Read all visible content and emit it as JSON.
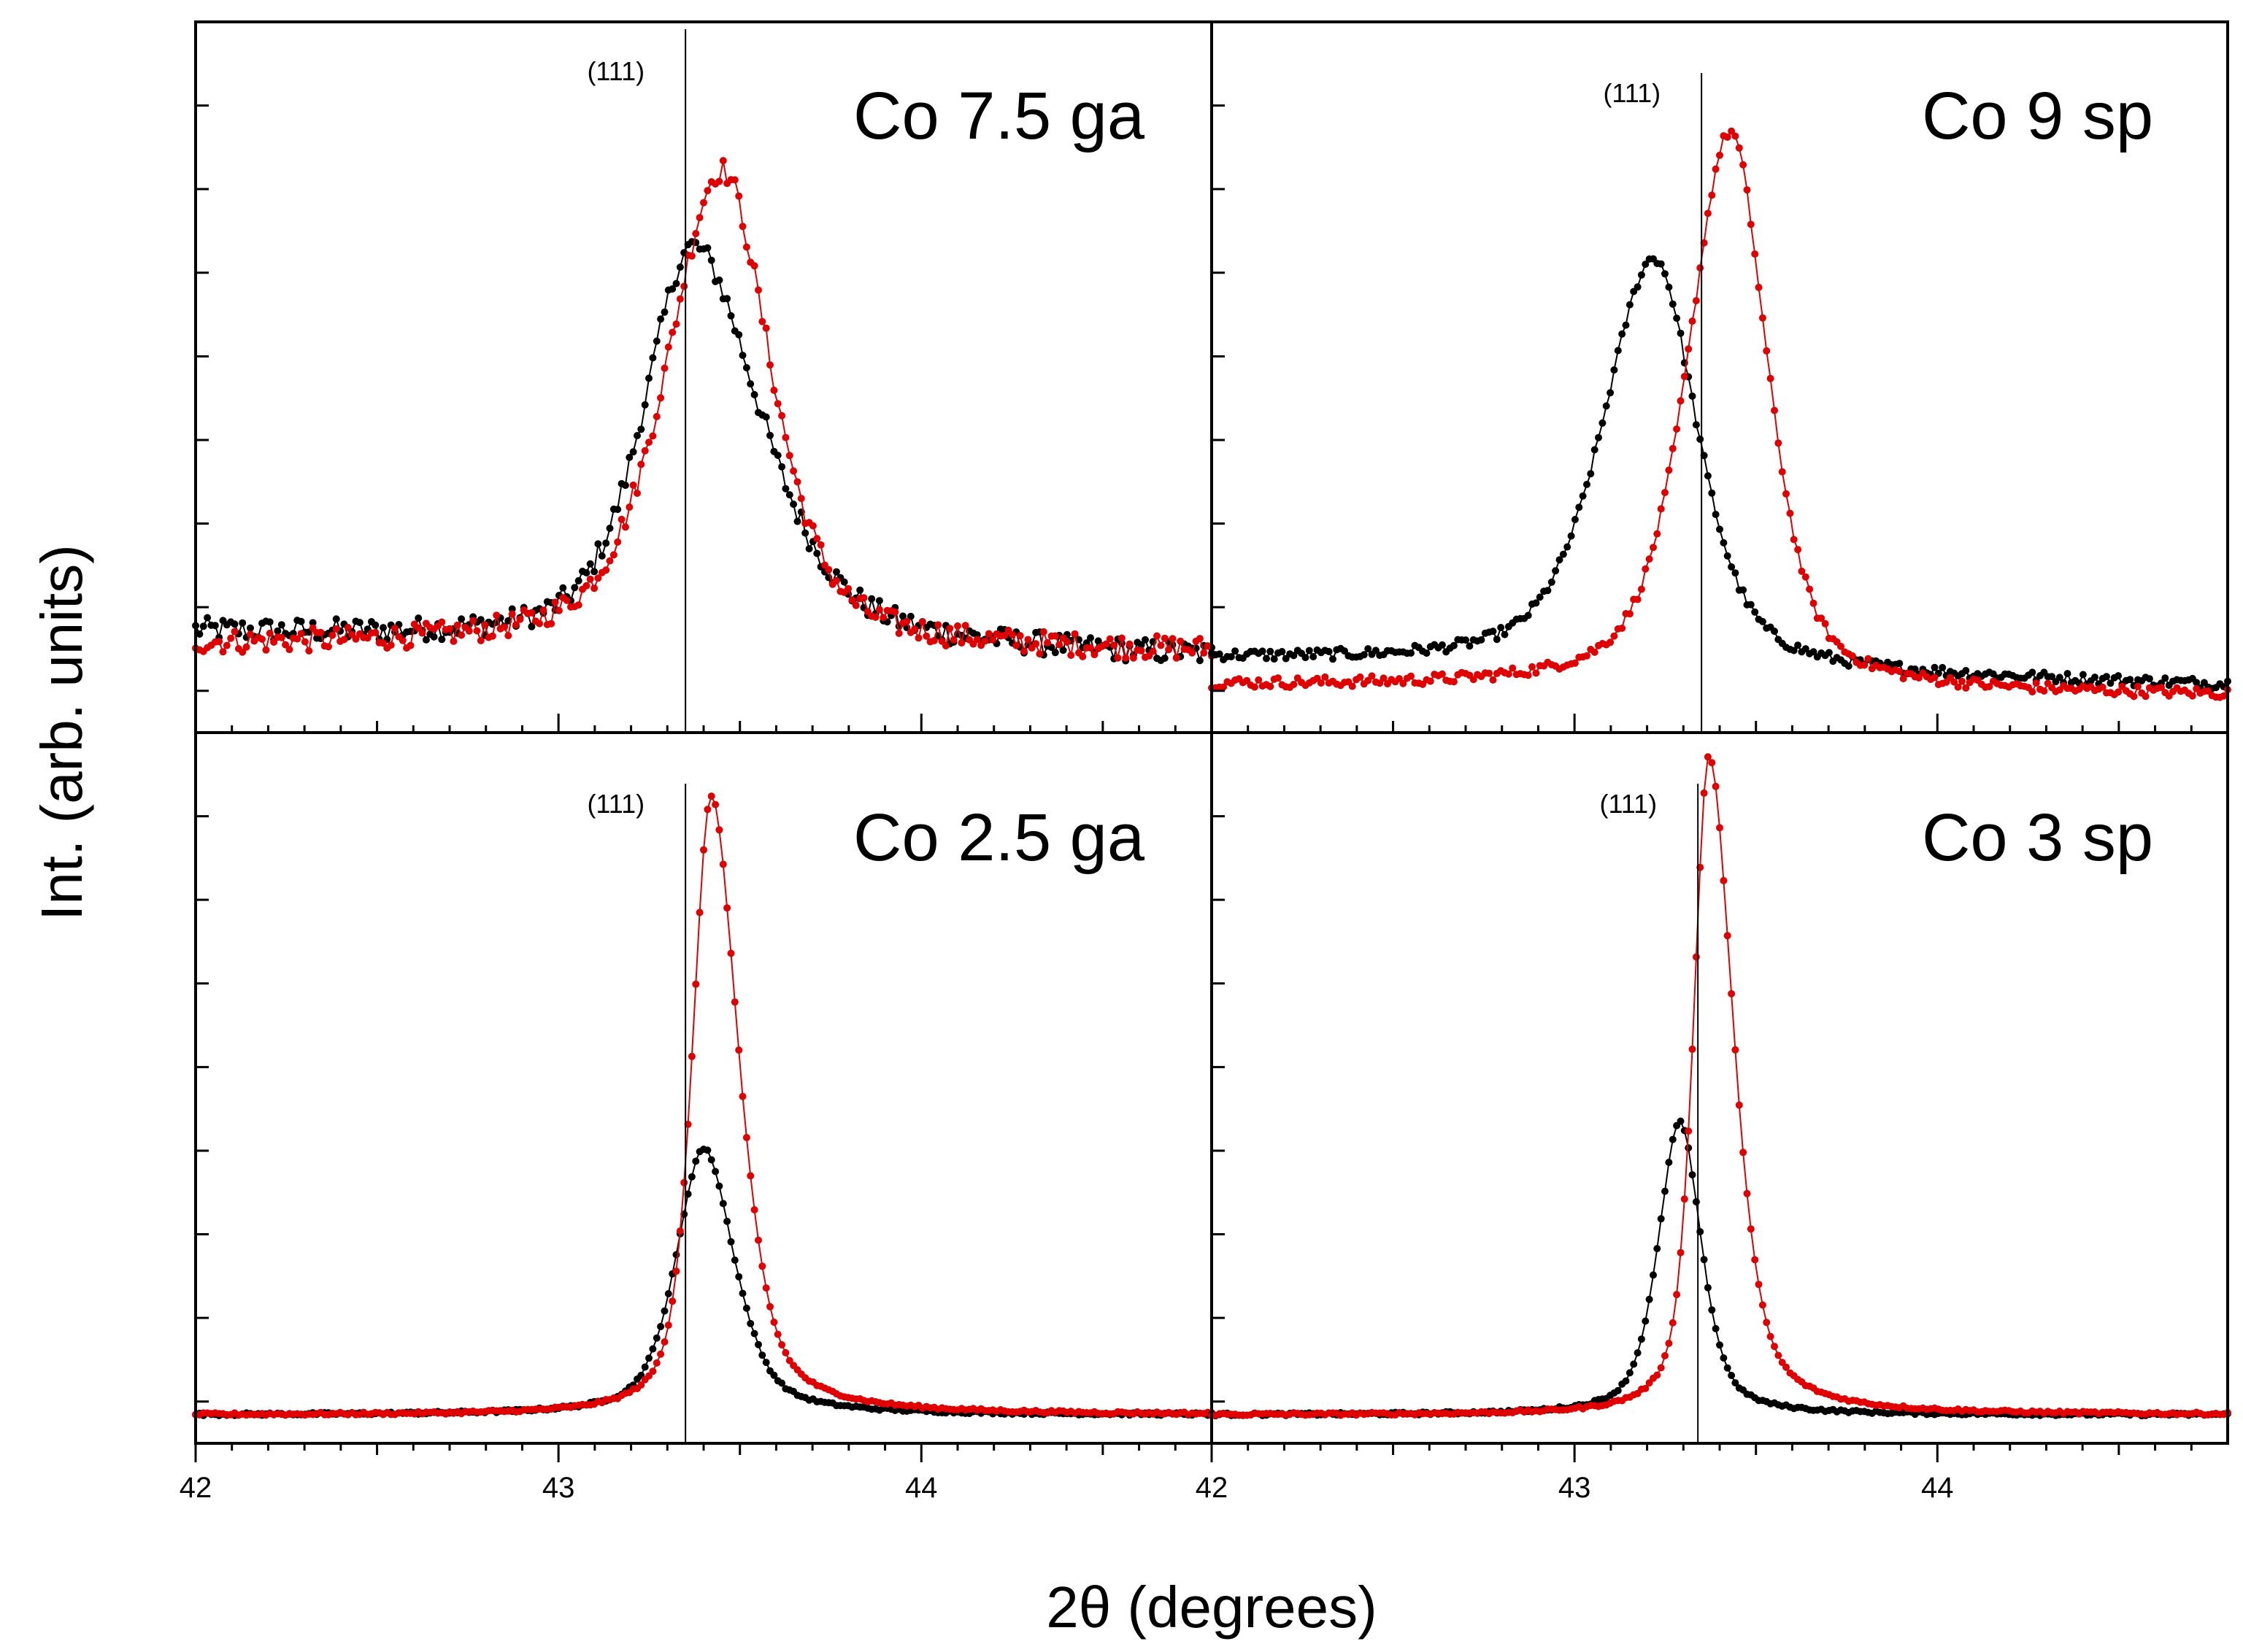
{
  "chart_data": {
    "type": "scatter",
    "layout": "2x2 panel grid, shared axes",
    "xlabel": "2θ (degrees)",
    "ylabel": "Int. (arb. units)",
    "xlim_left_column": [
      42,
      44.8
    ],
    "xlim_right_column": [
      42,
      44.8
    ],
    "x_tick_labels": [
      "42",
      "43",
      "44",
      "42",
      "43",
      "44"
    ],
    "ylim": [
      0,
      1
    ],
    "series_colors": {
      "sample_a": "#000000",
      "sample_b": "#e00000"
    },
    "reference_line_label": "(111)",
    "panels": [
      {
        "id": "top-left",
        "title": "Co 7.5 ga",
        "reference_x": 43.35,
        "series": [
          {
            "name": "black",
            "color": "#000000",
            "peak_x": 43.37,
            "peak_height": 0.6,
            "hwhm_left": 0.16,
            "hwhm_right": 0.22,
            "baseline_left": 0.12,
            "baseline_right": 0.08,
            "noise": 0.018
          },
          {
            "name": "red",
            "color": "#e00000",
            "peak_x": 43.45,
            "peak_height": 0.72,
            "hwhm_left": 0.18,
            "hwhm_right": 0.16,
            "baseline_left": 0.1,
            "baseline_right": 0.09,
            "noise": 0.018
          }
        ]
      },
      {
        "id": "top-right",
        "title": "Co 9 sp",
        "reference_x": 43.35,
        "series": [
          {
            "name": "black",
            "color": "#000000",
            "peak_x": 43.22,
            "peak_height": 0.62,
            "hwhm_left": 0.17,
            "hwhm_right": 0.14,
            "baseline_left": 0.08,
            "baseline_right": 0.04,
            "noise": 0.008
          },
          {
            "name": "red",
            "color": "#e00000",
            "peak_x": 43.43,
            "peak_height": 0.84,
            "hwhm_left": 0.14,
            "hwhm_right": 0.12,
            "baseline_left": 0.04,
            "baseline_right": 0.025,
            "noise": 0.008
          }
        ]
      },
      {
        "id": "bottom-left",
        "title": "Co 2.5 ga",
        "reference_x": 43.35,
        "series": [
          {
            "name": "black",
            "color": "#000000",
            "peak_x": 43.4,
            "peak_height": 0.4,
            "hwhm_left": 0.09,
            "hwhm_right": 0.1,
            "baseline_left": 0.012,
            "baseline_right": 0.012,
            "noise": 0.002
          },
          {
            "name": "red",
            "color": "#e00000",
            "peak_x": 43.42,
            "peak_height": 0.93,
            "hwhm_left": 0.06,
            "hwhm_right": 0.09,
            "baseline_left": 0.012,
            "baseline_right": 0.012,
            "noise": 0.002
          }
        ]
      },
      {
        "id": "bottom-right",
        "title": "Co 3 sp",
        "reference_x": 43.34,
        "series": [
          {
            "name": "black",
            "color": "#000000",
            "peak_x": 43.29,
            "peak_height": 0.44,
            "hwhm_left": 0.07,
            "hwhm_right": 0.07,
            "baseline_left": 0.012,
            "baseline_right": 0.012,
            "noise": 0.002
          },
          {
            "name": "red",
            "color": "#e00000",
            "peak_x": 43.37,
            "peak_height": 0.99,
            "hwhm_left": 0.05,
            "hwhm_right": 0.08,
            "baseline_left": 0.012,
            "baseline_right": 0.012,
            "noise": 0.002
          }
        ]
      }
    ]
  }
}
